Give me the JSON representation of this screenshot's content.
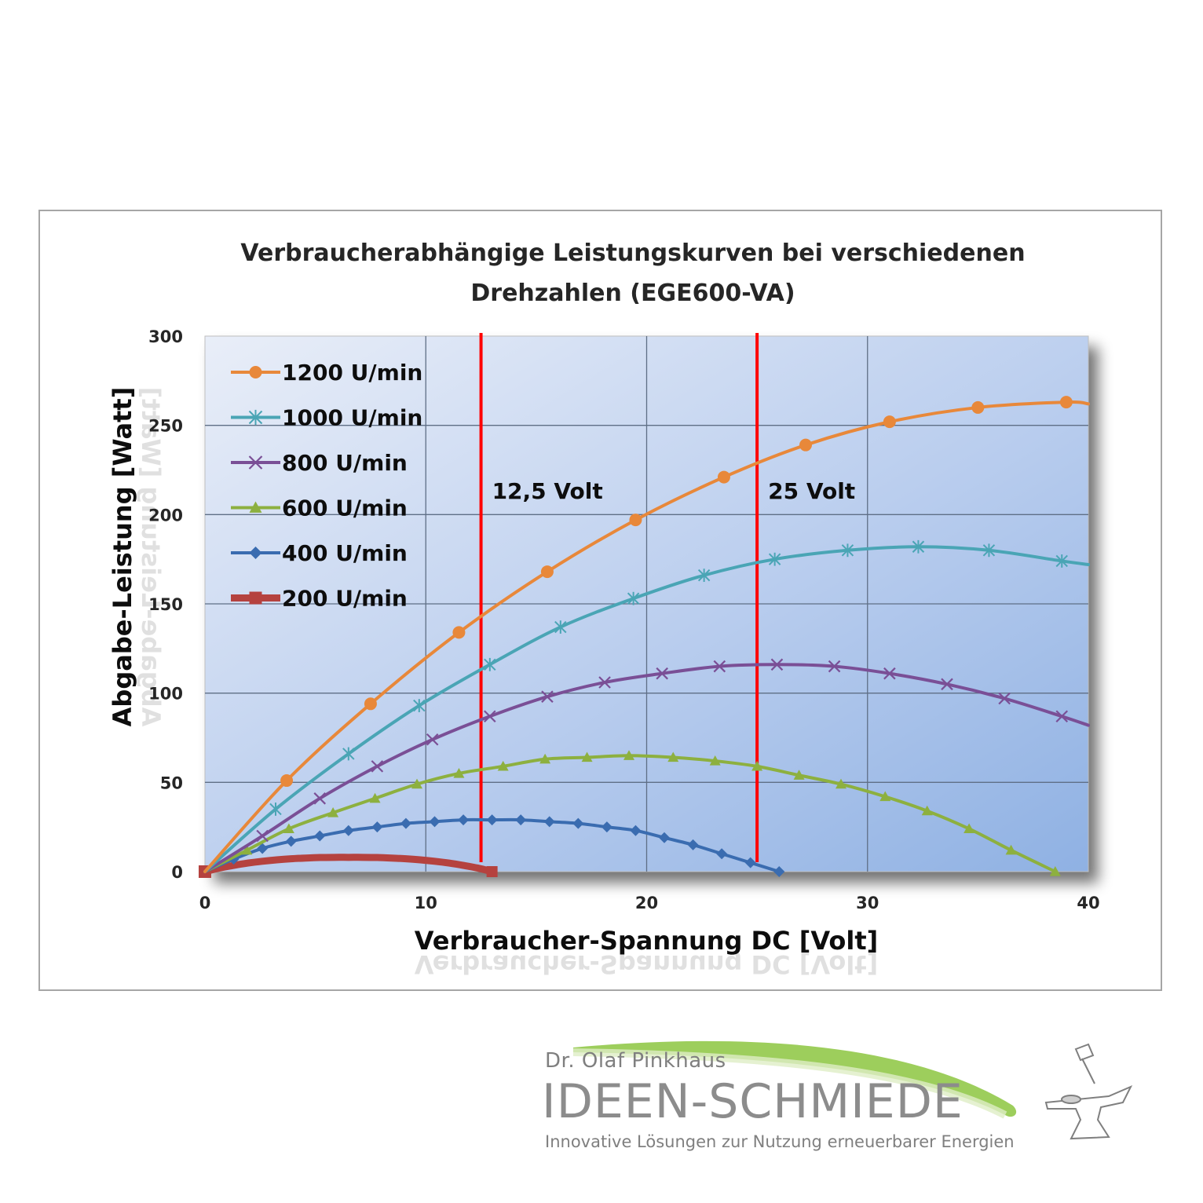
{
  "chart_data": {
    "type": "line",
    "title_lines": [
      "Verbraucherabhängige Leistungskurven bei verschiedenen",
      "Drehzahlen (EGE600-VA)"
    ],
    "xlabel": "Verbraucher-Spannung DC [Volt]",
    "ylabel": "Abgabe-Leistung  [Watt]",
    "xlim": [
      0,
      40
    ],
    "ylim": [
      0,
      300
    ],
    "xticks": [
      "0",
      "10",
      "20",
      "30",
      "40"
    ],
    "yticks": [
      "0",
      "50",
      "100",
      "150",
      "200",
      "250",
      "300"
    ],
    "grid": true,
    "legend_position": "top-left",
    "series": [
      {
        "name": "1200 U/min",
        "color": "#e8883a",
        "marker": "circle",
        "x": [
          0,
          3.7,
          7.5,
          11.5,
          15.5,
          19.5,
          23.5,
          27.2,
          31,
          35,
          39,
          40
        ],
        "y": [
          0,
          51,
          94,
          134,
          168,
          197,
          221,
          239,
          252,
          260,
          263,
          262
        ]
      },
      {
        "name": "1000 U/min",
        "color": "#4aa5b5",
        "marker": "asterisk",
        "x": [
          0,
          3.2,
          6.5,
          9.7,
          12.9,
          16.1,
          19.4,
          22.6,
          25.8,
          29.1,
          32.3,
          35.5,
          38.8,
          40
        ],
        "y": [
          0,
          35,
          66,
          93,
          116,
          137,
          153,
          166,
          175,
          180,
          182,
          180,
          174,
          172
        ]
      },
      {
        "name": "800 U/min",
        "color": "#7a4f96",
        "marker": "x",
        "x": [
          0,
          2.6,
          5.2,
          7.8,
          10.3,
          12.9,
          15.5,
          18.1,
          20.7,
          23.3,
          25.9,
          28.5,
          31.0,
          33.6,
          36.2,
          38.8,
          40
        ],
        "y": [
          0,
          20,
          41,
          59,
          74,
          87,
          98,
          106,
          111,
          115,
          116,
          115,
          111,
          105,
          97,
          87,
          82
        ]
      },
      {
        "name": "600 U/min",
        "color": "#8db03f",
        "marker": "triangle",
        "x": [
          0,
          1.9,
          3.8,
          5.8,
          7.7,
          9.6,
          11.5,
          13.5,
          15.4,
          17.3,
          19.2,
          21.2,
          23.1,
          25.0,
          26.9,
          28.8,
          30.8,
          32.7,
          34.6,
          36.5,
          38.5
        ],
        "y": [
          0,
          12,
          24,
          33,
          41,
          49,
          55,
          59,
          63,
          64,
          65,
          64,
          62,
          59,
          54,
          49,
          42,
          34,
          24,
          12,
          0
        ]
      },
      {
        "name": "400 U/min",
        "color": "#3a6cb0",
        "marker": "diamond",
        "x": [
          0,
          1.3,
          2.6,
          3.9,
          5.2,
          6.5,
          7.8,
          9.1,
          10.4,
          11.7,
          13.0,
          14.3,
          15.6,
          16.9,
          18.2,
          19.5,
          20.8,
          22.1,
          23.4,
          24.7,
          26.0
        ],
        "y": [
          0,
          7,
          13,
          17,
          20,
          23,
          25,
          27,
          28,
          29,
          29,
          29,
          28,
          27,
          25,
          23,
          19,
          15,
          10,
          5,
          0
        ]
      },
      {
        "name": "200 U/min",
        "color": "#b5423f",
        "marker": "square",
        "x": [
          0,
          0.65,
          1.3,
          1.95,
          2.6,
          3.25,
          3.9,
          4.55,
          5.2,
          5.85,
          6.5,
          7.15,
          7.8,
          8.45,
          9.1,
          9.75,
          10.4,
          11.05,
          11.7,
          12.35,
          13.0
        ],
        "y": [
          0,
          2,
          3.5,
          4.8,
          5.8,
          6.6,
          7.2,
          7.6,
          7.9,
          8,
          8,
          8,
          7.9,
          7.6,
          7.2,
          6.6,
          5.8,
          4.8,
          3.5,
          2,
          0
        ]
      }
    ],
    "vlines": [
      {
        "x": 12.5,
        "label": "12,5 Volt",
        "color": "#ff0000"
      },
      {
        "x": 25,
        "label": "25 Volt",
        "color": "#ff0000"
      }
    ]
  },
  "logo": {
    "author": "Dr. Olaf Pinkhaus",
    "brand": "IDEEN-SCHMIEDE",
    "tagline": "Innovative Lösungen zur Nutzung erneuerbarer Energien",
    "swoosh_color": "#8cc63f",
    "icon": "anvil-hammer-icon"
  }
}
